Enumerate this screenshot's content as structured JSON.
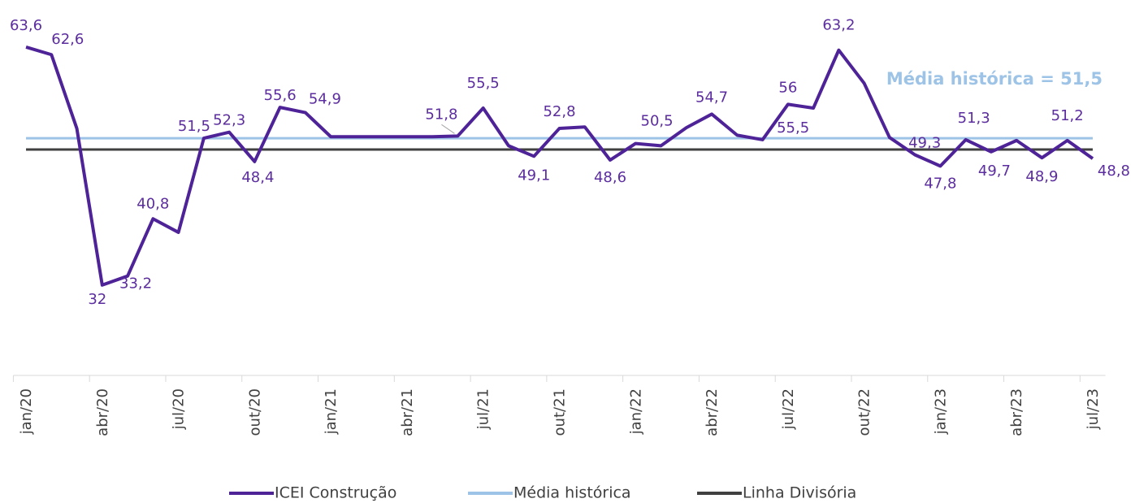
{
  "chart_data": {
    "type": "line",
    "annotation": "Média histórica = 51,5",
    "categories": [
      "jan/20",
      null,
      null,
      "abr/20",
      null,
      null,
      "jul/20",
      null,
      null,
      "out/20",
      null,
      null,
      "jan/21",
      null,
      null,
      "abr/21",
      null,
      null,
      "jul/21",
      null,
      null,
      "out/21",
      null,
      null,
      "jan/22",
      null,
      null,
      "abr/22",
      null,
      null,
      "jul/22",
      null,
      null,
      "out/22",
      null,
      null,
      "jan/23",
      null,
      null,
      "abr/23",
      null,
      null,
      "jul/23"
    ],
    "series": [
      {
        "name": "ICEI Construção",
        "color": "#4f2398",
        "values": [
          63.6,
          62.6,
          52.8,
          32,
          33.2,
          40.8,
          39.0,
          51.5,
          52.3,
          48.4,
          55.6,
          54.9,
          51.7,
          51.7,
          51.7,
          51.7,
          51.7,
          51.8,
          55.5,
          50.5,
          49.1,
          52.8,
          53.0,
          48.6,
          50.8,
          50.5,
          52.9,
          54.7,
          51.9,
          51.3,
          56,
          55.5,
          63.2,
          58.8,
          51.6,
          49.3,
          47.8,
          51.3,
          49.7,
          51.2,
          48.9,
          51.2,
          48.8
        ],
        "value_labels": [
          "63,6",
          "62,6",
          null,
          "32",
          "33,2",
          "40,8",
          null,
          "51,5",
          "52,3",
          "48,4",
          "55,6",
          "54,9",
          null,
          null,
          null,
          null,
          null,
          "51,8",
          "55,5",
          null,
          "49,1",
          "52,8",
          null,
          "48,6",
          null,
          "50,5",
          null,
          "54,7",
          null,
          null,
          "56",
          "55,5",
          "63,2",
          null,
          null,
          "49,3",
          "47,8",
          "51,3",
          "49,7",
          null,
          "48,9",
          "51,2",
          "48,8"
        ]
      },
      {
        "name": "Média histórica",
        "color": "#9dc3e6",
        "values": [
          51.5,
          51.5,
          51.5,
          51.5,
          51.5,
          51.5,
          51.5,
          51.5,
          51.5,
          51.5,
          51.5,
          51.5,
          51.5,
          51.5,
          51.5,
          51.5,
          51.5,
          51.5,
          51.5,
          51.5,
          51.5,
          51.5,
          51.5,
          51.5,
          51.5,
          51.5,
          51.5,
          51.5,
          51.5,
          51.5,
          51.5,
          51.5,
          51.5,
          51.5,
          51.5,
          51.5,
          51.5,
          51.5,
          51.5,
          51.5,
          51.5,
          51.5,
          51.5
        ]
      },
      {
        "name": "Linha Divisória",
        "color": "#404040",
        "values": [
          50,
          50,
          50,
          50,
          50,
          50,
          50,
          50,
          50,
          50,
          50,
          50,
          50,
          50,
          50,
          50,
          50,
          50,
          50,
          50,
          50,
          50,
          50,
          50,
          50,
          50,
          50,
          50,
          50,
          50,
          50,
          50,
          50,
          50,
          50,
          50,
          50,
          50,
          50,
          50,
          50,
          50,
          50
        ]
      }
    ],
    "ylim": [
      20,
      65
    ]
  }
}
